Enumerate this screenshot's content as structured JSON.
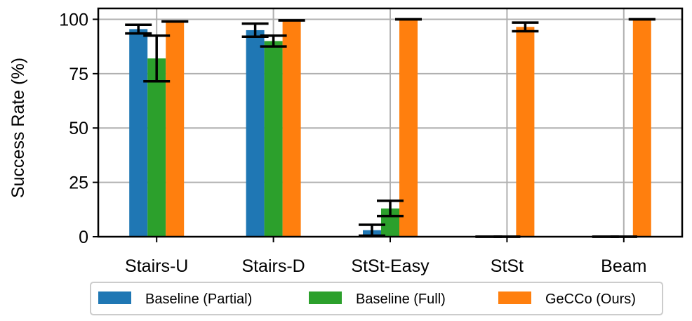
{
  "chart_data": {
    "type": "bar",
    "title": "",
    "xlabel": "",
    "ylabel": "Success Rate (%)",
    "ylim": [
      0,
      105
    ],
    "yticks": [
      "0",
      "25",
      "50",
      "75",
      "100"
    ],
    "grid": true,
    "legend_position": "bottom",
    "categories": [
      "Stairs-U",
      "Stairs-D",
      "StSt-Easy",
      "StSt",
      "Beam"
    ],
    "series": [
      {
        "name": "Baseline (Partial)",
        "color": "#1f77b4",
        "values": [
          95.5,
          95,
          3,
          0,
          0
        ],
        "err": [
          2,
          3,
          2.5,
          0,
          0
        ]
      },
      {
        "name": "Baseline (Full)",
        "color": "#2ca02c",
        "values": [
          82,
          90,
          13,
          0,
          0
        ],
        "err": [
          10.5,
          2.5,
          3.5,
          0,
          0
        ]
      },
      {
        "name": "GeCCo (Ours)",
        "color": "#ff7f0e",
        "values": [
          99,
          99.5,
          100,
          96.5,
          100
        ],
        "err": [
          0,
          0,
          0,
          2,
          0
        ]
      }
    ]
  }
}
